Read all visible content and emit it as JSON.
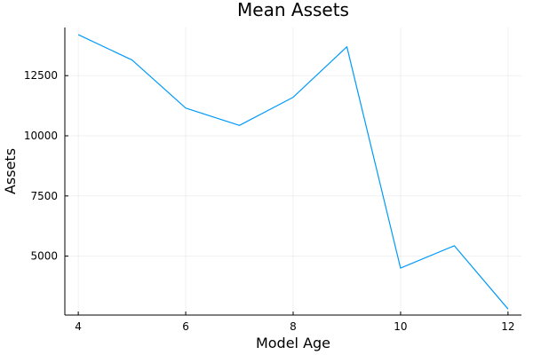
{
  "chart_data": {
    "type": "line",
    "title": "Mean Assets",
    "xlabel": "Model Age",
    "ylabel": "Assets",
    "xlim": [
      3.75,
      12.25
    ],
    "ylim": [
      2550,
      14500
    ],
    "xticks": [
      4,
      6,
      8,
      10,
      12
    ],
    "yticks": [
      5000,
      7500,
      10000,
      12500
    ],
    "grid": true,
    "legend": "none",
    "series": [
      {
        "color": "#009AFA",
        "x": [
          4,
          5,
          6,
          7,
          8,
          9,
          10,
          11,
          12
        ],
        "y": [
          14200,
          13150,
          11150,
          10430,
          11600,
          13700,
          4500,
          5430,
          2800
        ]
      }
    ]
  }
}
